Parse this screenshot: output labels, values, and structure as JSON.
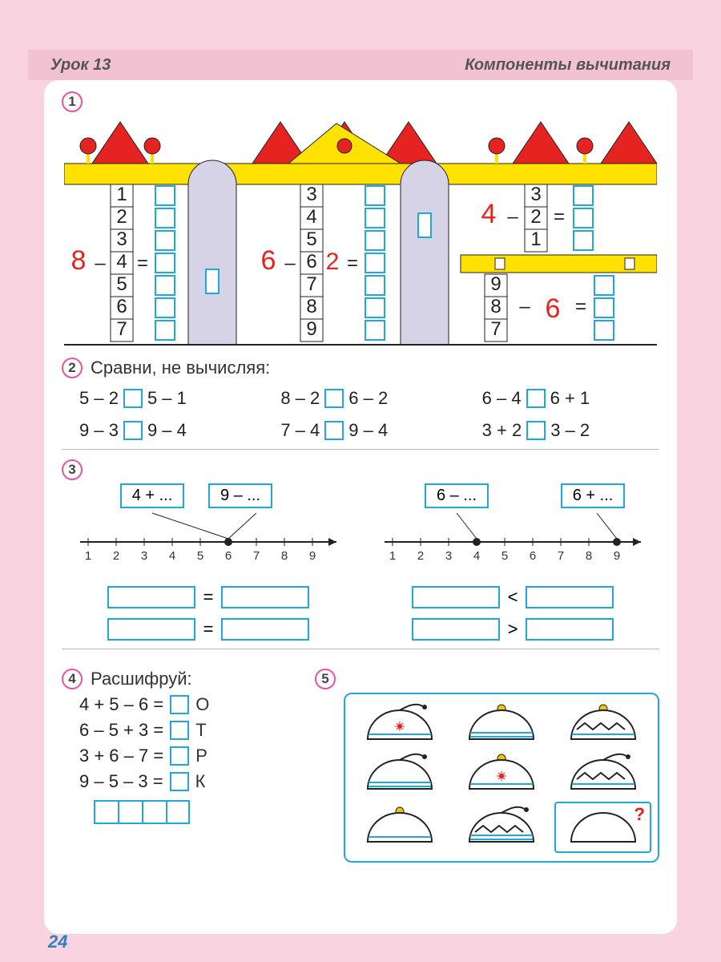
{
  "header": {
    "left": "Урок 13",
    "right": "Компоненты вычитания"
  },
  "pageNumber": "24",
  "colors": {
    "page_bg": "#f7d4e0",
    "panel_bg": "#ffffff",
    "accent_blue": "#1fa8d8",
    "accent_pink": "#e754a4",
    "accent_red": "#e52421",
    "accent_yellow": "#ffe200",
    "text": "#333333"
  },
  "ex1": {
    "number": "1",
    "castle": {
      "roof_triangle_color": "#e52421",
      "roof_band_color": "#ffe200",
      "ball_color": "#e52421",
      "ball_stem": "#ffe200",
      "tower_fill": "#d6d3e6",
      "window_stroke": "#1fa8d8",
      "text_red": "#e52421",
      "text_black": "#222222",
      "blocks": [
        {
          "minuend": "8",
          "subtrahends": [
            "1",
            "2",
            "3",
            "4",
            "5",
            "6",
            "7"
          ]
        },
        {
          "minuend": "6",
          "subtrahends_top": [
            "3",
            "4",
            "5"
          ],
          "mid_red": "2",
          "subtrahends_bot": [
            "7",
            "8",
            "9"
          ]
        },
        {
          "minuend": "4",
          "subtrahends": [
            "3",
            "2",
            "1"
          ]
        },
        {
          "minuend_bot": "6",
          "subtrahends": [
            "9",
            "8",
            "7"
          ]
        }
      ]
    }
  },
  "ex2": {
    "number": "2",
    "title": "Сравни, не вычисляя:",
    "rows": [
      [
        {
          "l": "5 – 2",
          "r": "5 – 1"
        },
        {
          "l": "8 – 2",
          "r": "6 – 2"
        },
        {
          "l": "6 – 4",
          "r": "6 + 1"
        }
      ],
      [
        {
          "l": "9 – 3",
          "r": "9 – 4"
        },
        {
          "l": "7 – 4",
          "r": "9 – 4"
        },
        {
          "l": "3 + 2",
          "r": "3 – 2"
        }
      ]
    ]
  },
  "ex3": {
    "number": "3",
    "lines": [
      {
        "labels": [
          "4 + ...",
          "9 – ..."
        ],
        "ticks": [
          "1",
          "2",
          "3",
          "4",
          "5",
          "6",
          "7",
          "8",
          "9"
        ],
        "point": 6,
        "rels": [
          "=",
          "="
        ]
      },
      {
        "labels": [
          "6 – ...",
          "6 + ..."
        ],
        "ticks": [
          "1",
          "2",
          "3",
          "4",
          "5",
          "6",
          "7",
          "8",
          "9"
        ],
        "points": [
          4,
          9
        ],
        "rels": [
          "<",
          ">"
        ]
      }
    ]
  },
  "ex4": {
    "number": "4",
    "title": "Расшифруй:",
    "rows": [
      {
        "expr": "4 + 5 – 6 =",
        "letter": "О"
      },
      {
        "expr": "6 – 5 + 3 =",
        "letter": "Т"
      },
      {
        "expr": "3 + 6 – 7 =",
        "letter": "Р"
      },
      {
        "expr": "9 – 5 – 3 =",
        "letter": "К"
      }
    ],
    "answer_slots": 4
  },
  "ex5": {
    "number": "5",
    "hats": [
      {
        "pompom": "tassel",
        "pompom_color": "#222",
        "pattern": "flower",
        "band": "line"
      },
      {
        "pompom": "ball",
        "pompom_color": "#f5c400",
        "pattern": "none",
        "band": "double"
      },
      {
        "pompom": "ball",
        "pompom_color": "#f5c400",
        "pattern": "zigzag",
        "band": "line"
      },
      {
        "pompom": "tassel",
        "pompom_color": "#222",
        "pattern": "none",
        "band": "double"
      },
      {
        "pompom": "ball",
        "pompom_color": "#f5c400",
        "pattern": "flower",
        "band": "line"
      },
      {
        "pompom": "tassel",
        "pompom_color": "#222",
        "pattern": "zigzag",
        "band": "line"
      },
      {
        "pompom": "ball",
        "pompom_color": "#f5c400",
        "pattern": "none",
        "band": "line"
      },
      {
        "pompom": "tassel",
        "pompom_color": "#222",
        "pattern": "zigzag",
        "band": "double"
      }
    ],
    "question_mark": "?",
    "blank_hat": {
      "pattern": "none",
      "band": "none"
    }
  }
}
